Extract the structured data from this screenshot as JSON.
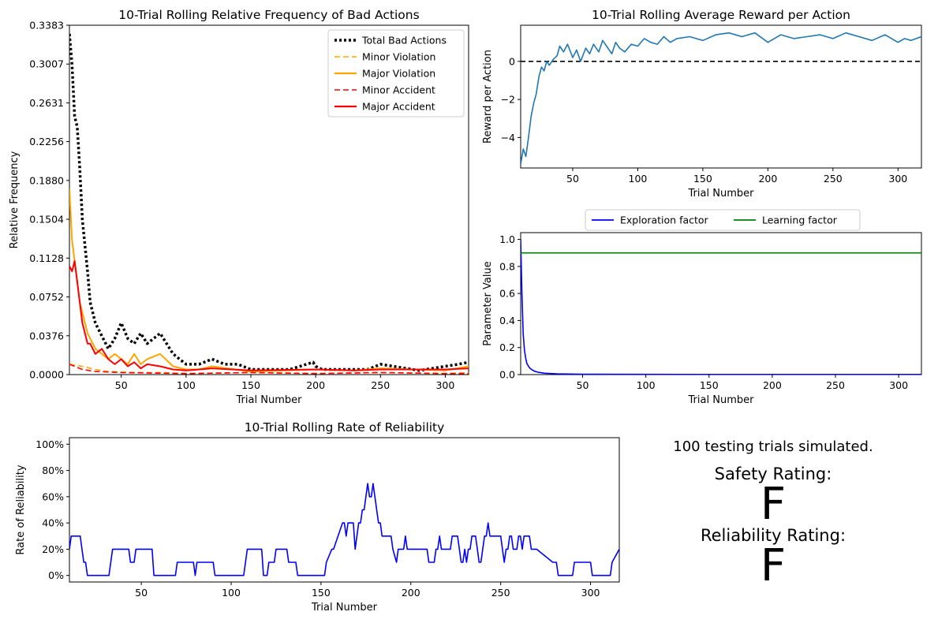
{
  "chart_data": [
    {
      "id": "bad-actions",
      "type": "line",
      "title": "10-Trial Rolling Relative Frequency of Bad Actions",
      "xlabel": "Trial Number",
      "ylabel": "Relative Frequency",
      "xlim": [
        10,
        318
      ],
      "ylim": [
        0,
        0.3383
      ],
      "xticks": [
        50,
        100,
        150,
        200,
        250,
        300
      ],
      "yticks": [
        0.0,
        0.0376,
        0.0752,
        0.1128,
        0.1504,
        0.188,
        0.2256,
        0.2631,
        0.3007,
        0.3383
      ],
      "ytick_labels": [
        "0.0000",
        "0.0376",
        "0.0752",
        "0.1128",
        "0.1504",
        "0.1880",
        "0.2256",
        "0.2631",
        "0.3007",
        "0.3383"
      ],
      "legend_position": "upper right",
      "series": [
        {
          "name": "Total Bad Actions",
          "color": "#000000",
          "style": "dotted",
          "x": [
            10,
            12,
            14,
            16,
            18,
            20,
            22,
            24,
            26,
            28,
            30,
            32,
            34,
            36,
            38,
            40,
            45,
            50,
            55,
            60,
            65,
            70,
            75,
            80,
            85,
            90,
            95,
            100,
            110,
            120,
            130,
            140,
            150,
            160,
            180,
            198,
            200,
            205,
            220,
            240,
            250,
            260,
            280,
            300,
            310,
            318
          ],
          "values": [
            0.33,
            0.3,
            0.25,
            0.24,
            0.2,
            0.15,
            0.125,
            0.1,
            0.07,
            0.06,
            0.05,
            0.045,
            0.04,
            0.035,
            0.03,
            0.025,
            0.035,
            0.05,
            0.035,
            0.03,
            0.04,
            0.03,
            0.035,
            0.04,
            0.03,
            0.02,
            0.015,
            0.01,
            0.01,
            0.015,
            0.01,
            0.01,
            0.005,
            0.005,
            0.005,
            0.012,
            0.008,
            0.005,
            0.005,
            0.005,
            0.01,
            0.008,
            0.004,
            0.008,
            0.01,
            0.012
          ]
        },
        {
          "name": "Minor Violation",
          "color": "#ffa500",
          "style": "dashed",
          "x": [
            10,
            20,
            30,
            40,
            60,
            80,
            100,
            150,
            200,
            250,
            300,
            318
          ],
          "values": [
            0.01,
            0.008,
            0.005,
            0.003,
            0.002,
            0.002,
            0.001,
            0.002,
            0.001,
            0.002,
            0.001,
            0.002
          ]
        },
        {
          "name": "Major Violation",
          "color": "#ffa500",
          "style": "solid",
          "x": [
            10,
            12,
            14,
            16,
            18,
            20,
            22,
            24,
            26,
            28,
            30,
            35,
            40,
            45,
            50,
            55,
            60,
            65,
            70,
            80,
            90,
            100,
            110,
            120,
            150,
            200,
            230,
            250,
            300,
            318
          ],
          "values": [
            0.18,
            0.13,
            0.11,
            0.09,
            0.07,
            0.06,
            0.05,
            0.04,
            0.035,
            0.03,
            0.025,
            0.02,
            0.015,
            0.02,
            0.015,
            0.01,
            0.02,
            0.01,
            0.015,
            0.02,
            0.008,
            0.005,
            0.005,
            0.008,
            0.003,
            0.005,
            0.004,
            0.006,
            0.004,
            0.008
          ]
        },
        {
          "name": "Minor Accident",
          "color": "#ff0000",
          "style": "dashed",
          "x": [
            10,
            20,
            30,
            50,
            100,
            150,
            200,
            250,
            300,
            318
          ],
          "values": [
            0.01,
            0.005,
            0.003,
            0.002,
            0.001,
            0.002,
            0.001,
            0.002,
            0.001,
            0.001
          ]
        },
        {
          "name": "Major Accident",
          "color": "#ff0000",
          "style": "solid",
          "x": [
            10,
            12,
            14,
            16,
            18,
            20,
            22,
            24,
            26,
            28,
            30,
            35,
            40,
            45,
            50,
            55,
            60,
            65,
            70,
            80,
            90,
            100,
            110,
            120,
            150,
            200,
            230,
            250,
            300,
            318
          ],
          "values": [
            0.105,
            0.1,
            0.11,
            0.09,
            0.07,
            0.05,
            0.04,
            0.03,
            0.03,
            0.025,
            0.02,
            0.025,
            0.015,
            0.01,
            0.015,
            0.008,
            0.012,
            0.006,
            0.01,
            0.008,
            0.005,
            0.004,
            0.005,
            0.006,
            0.004,
            0.005,
            0.004,
            0.005,
            0.005,
            0.006
          ]
        }
      ]
    },
    {
      "id": "reward",
      "type": "line",
      "title": "10-Trial Rolling Average Reward per Action",
      "xlabel": "Trial Number",
      "ylabel": "Reward per Action",
      "xlim": [
        10,
        318
      ],
      "ylim": [
        -5.6,
        1.9
      ],
      "xticks": [
        50,
        100,
        150,
        200,
        250,
        300
      ],
      "yticks": [
        -4,
        -2,
        0
      ],
      "reference_line": 0,
      "series": [
        {
          "name": "Reward",
          "color": "#1f77b4",
          "x": [
            10,
            12,
            14,
            16,
            18,
            20,
            22,
            24,
            26,
            28,
            30,
            32,
            35,
            38,
            40,
            43,
            46,
            50,
            53,
            56,
            60,
            63,
            66,
            70,
            73,
            76,
            80,
            83,
            86,
            90,
            95,
            100,
            105,
            110,
            115,
            120,
            125,
            130,
            140,
            150,
            160,
            170,
            180,
            190,
            200,
            210,
            220,
            230,
            240,
            250,
            260,
            270,
            280,
            290,
            300,
            305,
            310,
            318
          ],
          "values": [
            -5.4,
            -4.6,
            -5.0,
            -4.0,
            -2.9,
            -2.2,
            -1.7,
            -0.8,
            -0.3,
            -0.5,
            0.0,
            -0.2,
            0.1,
            0.3,
            0.8,
            0.5,
            0.9,
            0.2,
            0.6,
            0.0,
            0.7,
            0.4,
            0.9,
            0.5,
            1.1,
            0.8,
            0.4,
            1.0,
            0.7,
            0.5,
            0.9,
            0.8,
            1.2,
            1.0,
            0.9,
            1.3,
            1.0,
            1.2,
            1.3,
            1.1,
            1.4,
            1.5,
            1.3,
            1.5,
            1.0,
            1.4,
            1.2,
            1.3,
            1.4,
            1.2,
            1.5,
            1.3,
            1.1,
            1.4,
            1.0,
            1.2,
            1.1,
            1.3
          ]
        }
      ]
    },
    {
      "id": "parameters",
      "type": "line",
      "title": "",
      "xlabel": "Trial Number",
      "ylabel": "Parameter Value",
      "xlim": [
        1,
        318
      ],
      "ylim": [
        0,
        1.05
      ],
      "xticks": [
        50,
        100,
        150,
        200,
        250,
        300
      ],
      "yticks": [
        0.0,
        0.2,
        0.4,
        0.6,
        0.8,
        1.0
      ],
      "ytick_labels": [
        "0.0",
        "0.2",
        "0.4",
        "0.6",
        "0.8",
        "1.0"
      ],
      "legend_position": "above",
      "series": [
        {
          "name": "Exploration factor",
          "color": "#0000ff",
          "x": [
            1,
            2,
            3,
            4,
            5,
            6,
            8,
            10,
            12,
            15,
            20,
            30,
            50,
            100,
            200,
            318
          ],
          "values": [
            1.0,
            0.6,
            0.3,
            0.18,
            0.12,
            0.08,
            0.05,
            0.035,
            0.025,
            0.017,
            0.01,
            0.006,
            0.003,
            0.002,
            0.001,
            0.001
          ]
        },
        {
          "name": "Learning factor",
          "color": "#008000",
          "x": [
            1,
            318
          ],
          "values": [
            0.9,
            0.9
          ]
        }
      ]
    },
    {
      "id": "reliability",
      "type": "line",
      "title": "10-Trial Rolling Rate of Reliability",
      "xlabel": "Trial Number",
      "ylabel": "Rate of Reliability",
      "xlim": [
        10,
        316
      ],
      "ylim": [
        -5,
        105
      ],
      "xticks": [
        50,
        100,
        150,
        200,
        250,
        300
      ],
      "yticks": [
        0,
        20,
        40,
        60,
        80,
        100
      ],
      "ytick_labels": [
        "0%",
        "20%",
        "40%",
        "60%",
        "80%",
        "100%"
      ],
      "series": [
        {
          "name": "Reliability",
          "color": "#0000ff",
          "x": [
            10,
            11,
            16,
            17,
            18,
            19,
            20,
            21,
            32,
            33,
            34,
            35,
            43,
            44,
            46,
            47,
            48,
            56,
            57,
            69,
            70,
            79,
            80,
            81,
            90,
            91,
            107,
            108,
            109,
            110,
            117,
            118,
            120,
            121,
            124,
            125,
            126,
            131,
            132,
            136,
            137,
            152,
            153,
            156,
            157,
            162,
            163,
            164,
            165,
            168,
            169,
            170,
            171,
            172,
            173,
            174,
            175,
            176,
            177,
            178,
            179,
            180,
            181,
            182,
            183,
            184,
            189,
            190,
            192,
            193,
            196,
            197,
            198,
            209,
            210,
            213,
            214,
            215,
            216,
            217,
            222,
            223,
            226,
            227,
            228,
            229,
            230,
            231,
            232,
            233,
            234,
            236,
            237,
            238,
            239,
            240,
            241,
            242,
            243,
            244,
            250,
            251,
            252,
            253,
            254,
            255,
            256,
            257,
            259,
            260,
            261,
            262,
            263,
            264,
            266,
            267,
            270,
            279,
            280,
            281,
            282,
            290,
            291,
            300,
            301,
            311,
            312,
            316
          ],
          "values": [
            20,
            30,
            30,
            20,
            10,
            10,
            0,
            0,
            0,
            10,
            20,
            20,
            20,
            10,
            10,
            20,
            20,
            20,
            0,
            0,
            10,
            10,
            0,
            10,
            10,
            0,
            0,
            10,
            20,
            20,
            20,
            0,
            0,
            10,
            10,
            20,
            20,
            20,
            10,
            10,
            0,
            0,
            10,
            20,
            20,
            40,
            40,
            30,
            40,
            40,
            20,
            30,
            40,
            40,
            50,
            50,
            60,
            70,
            60,
            60,
            70,
            60,
            50,
            40,
            40,
            30,
            30,
            20,
            10,
            20,
            20,
            30,
            20,
            20,
            10,
            10,
            20,
            20,
            30,
            20,
            20,
            30,
            30,
            20,
            10,
            10,
            20,
            10,
            20,
            20,
            30,
            30,
            20,
            10,
            10,
            20,
            30,
            30,
            40,
            30,
            30,
            20,
            10,
            20,
            20,
            30,
            30,
            20,
            20,
            30,
            30,
            20,
            30,
            30,
            30,
            20,
            20,
            10,
            10,
            10,
            0,
            0,
            10,
            10,
            0,
            0,
            10,
            20
          ]
        }
      ]
    }
  ],
  "summary": {
    "trials_note": "100 testing trials simulated.",
    "safety_label": "Safety Rating:",
    "safety_grade": "F",
    "reliability_label": "Reliability Rating:",
    "reliability_grade": "F"
  }
}
